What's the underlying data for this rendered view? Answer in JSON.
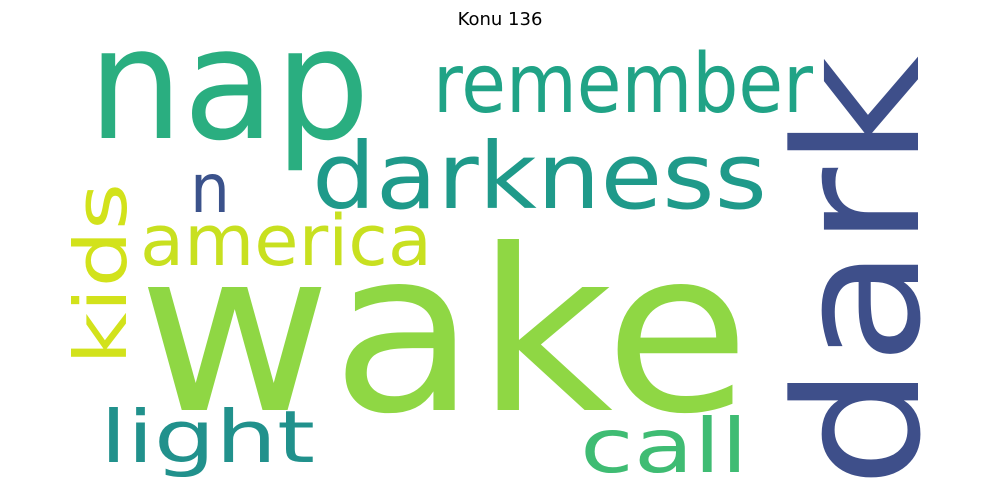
{
  "title": "Konu 136",
  "words": [
    {
      "text": "wake",
      "color": "#8fd744"
    },
    {
      "text": "nap",
      "color": "#2aae80"
    },
    {
      "text": "dark",
      "color": "#3e4f8a"
    },
    {
      "text": "darkness",
      "color": "#1f9a8a"
    },
    {
      "text": "remember",
      "color": "#20a386"
    },
    {
      "text": "america",
      "color": "#c8e020"
    },
    {
      "text": "kids",
      "color": "#d2e21b"
    },
    {
      "text": "light",
      "color": "#21918c"
    },
    {
      "text": "call",
      "color": "#3fbc73"
    },
    {
      "text": "n",
      "color": "#3b528b"
    }
  ]
}
